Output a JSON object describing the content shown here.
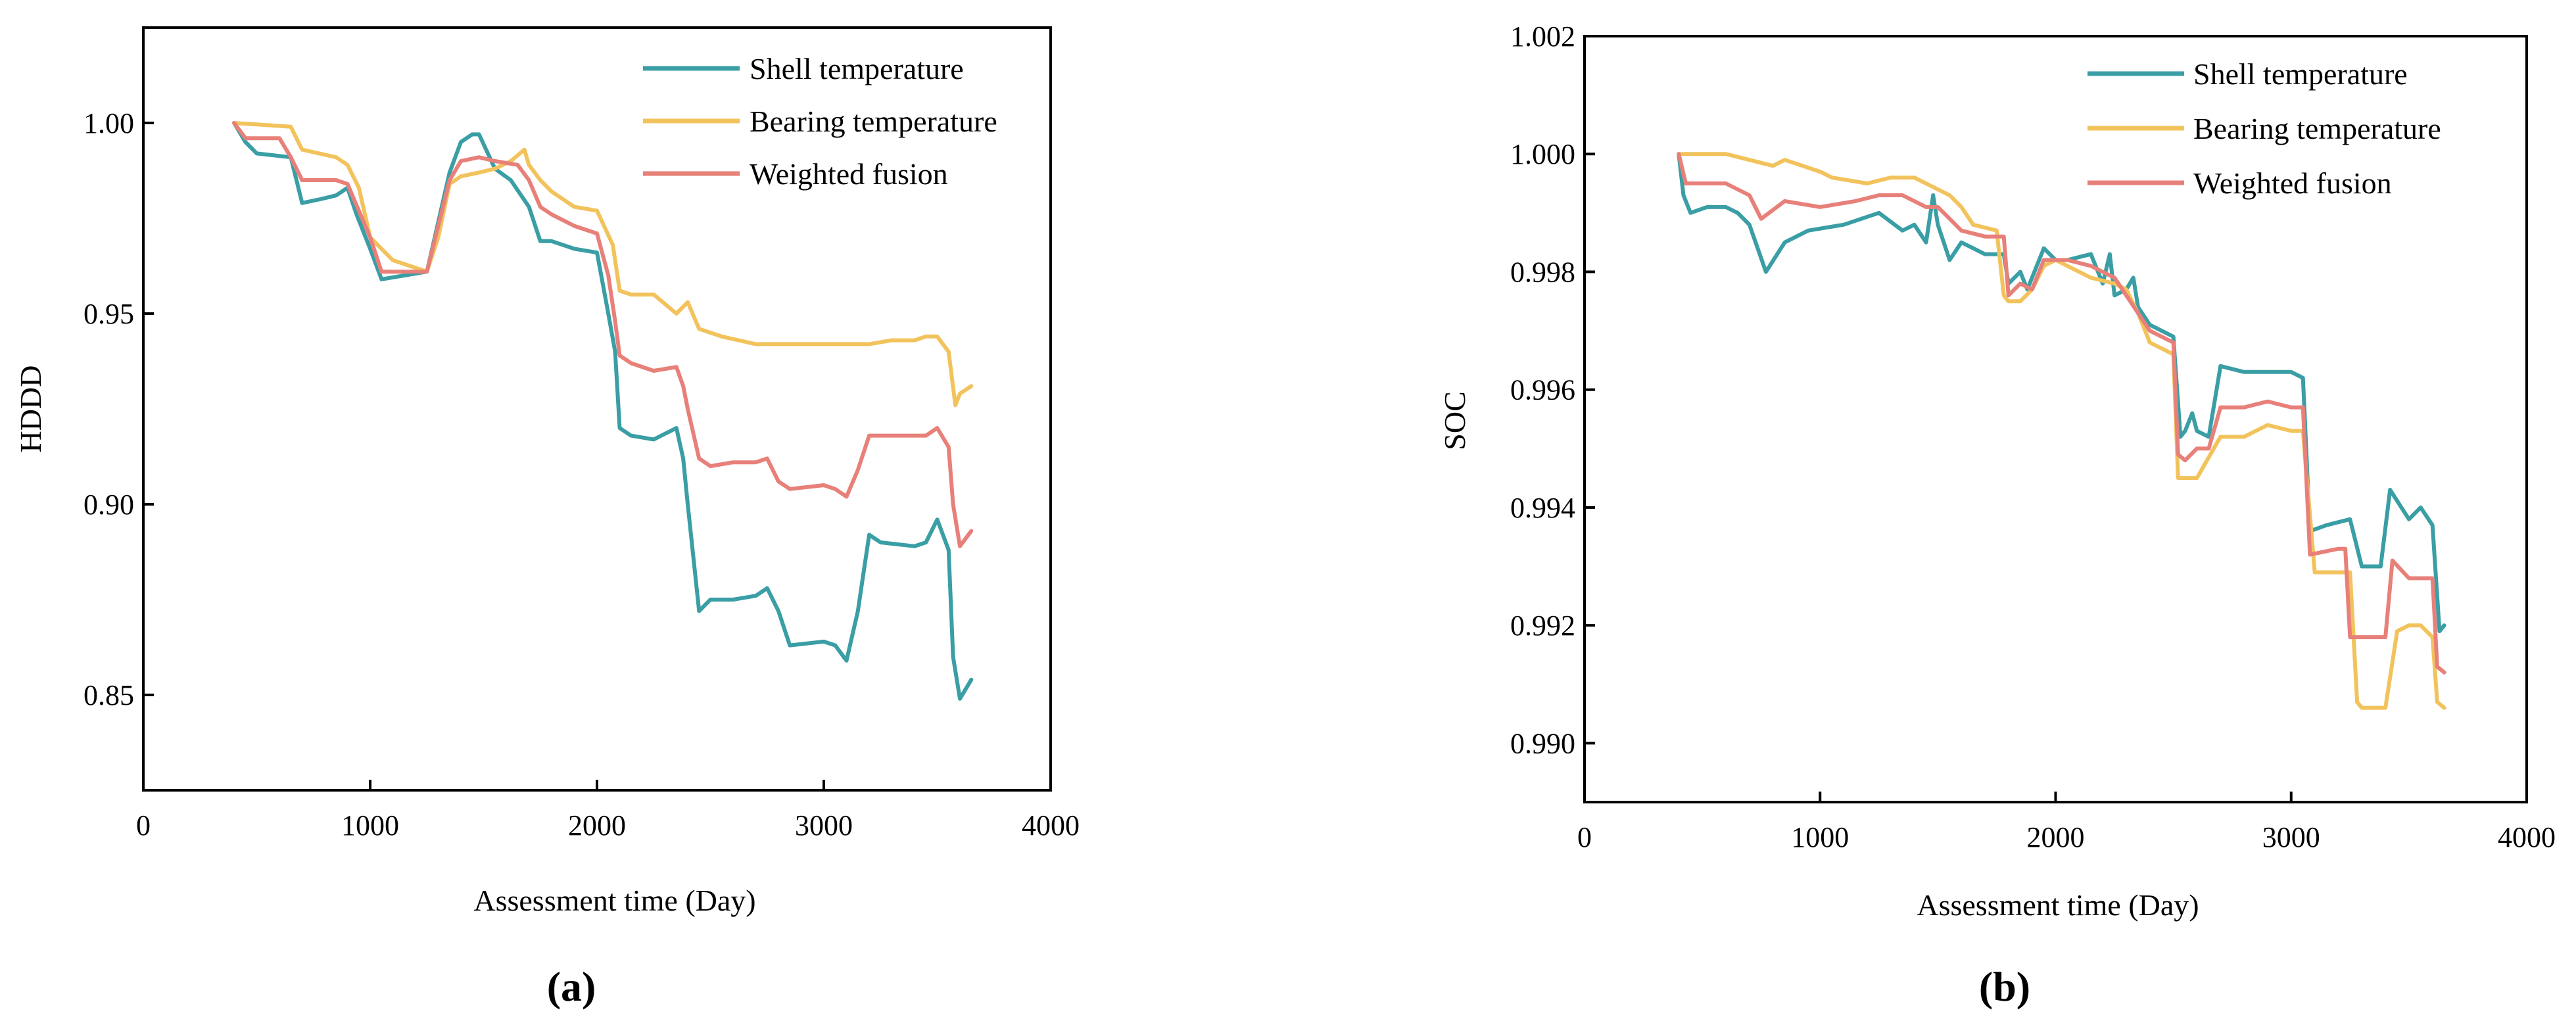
{
  "colors": {
    "shell": "#3a9ea5",
    "bearing": "#f2c35c",
    "weighted": "#e8807a",
    "axis": "#000000"
  },
  "legend": {
    "shell": "Shell temperature",
    "bearing": "Bearing temperature",
    "weighted": "Weighted fusion"
  },
  "panels": {
    "a": {
      "caption": "(a)"
    },
    "b": {
      "caption": "(b)"
    }
  },
  "chart_data": [
    {
      "id": "a",
      "type": "line",
      "title": "",
      "xlabel": "Assessment time (Day)",
      "ylabel": "HDDD",
      "xlim": [
        0,
        4000
      ],
      "ylim": [
        0.825,
        1.025
      ],
      "xticks": [
        0,
        1000,
        2000,
        3000,
        4000
      ],
      "xtick_labels": [
        "0",
        "1000",
        "2000",
        "3000",
        "4000"
      ],
      "yticks": [
        0.85,
        0.9,
        0.95,
        1.0
      ],
      "ytick_labels": [
        "0.85",
        "0.90",
        "0.95",
        "1.00"
      ],
      "grid": false,
      "legend_position": "top-right",
      "series": [
        {
          "key": "shell",
          "name": "Shell temperature",
          "x": [
            400,
            450,
            500,
            650,
            700,
            780,
            850,
            900,
            940,
            1000,
            1050,
            1150,
            1250,
            1350,
            1400,
            1450,
            1480,
            1550,
            1620,
            1700,
            1750,
            1800,
            1900,
            2000,
            2050,
            2080,
            2100,
            2150,
            2250,
            2350,
            2380,
            2400,
            2450,
            2500,
            2600,
            2700,
            2750,
            2800,
            2850,
            3000,
            3050,
            3100,
            3150,
            3200,
            3250,
            3400,
            3450,
            3500,
            3550,
            3570,
            3600,
            3650
          ],
          "y": [
            1.0,
            0.995,
            0.992,
            0.991,
            0.979,
            0.98,
            0.981,
            0.983,
            0.976,
            0.967,
            0.959,
            0.96,
            0.961,
            0.987,
            0.995,
            0.997,
            0.997,
            0.988,
            0.985,
            0.978,
            0.969,
            0.969,
            0.967,
            0.966,
            0.95,
            0.94,
            0.92,
            0.918,
            0.917,
            0.92,
            0.912,
            0.9,
            0.872,
            0.875,
            0.875,
            0.876,
            0.878,
            0.872,
            0.863,
            0.864,
            0.863,
            0.859,
            0.872,
            0.892,
            0.89,
            0.889,
            0.89,
            0.896,
            0.888,
            0.86,
            0.849,
            0.854
          ]
        },
        {
          "key": "bearing",
          "name": "Bearing temperature",
          "x": [
            400,
            650,
            700,
            850,
            900,
            950,
            1000,
            1100,
            1200,
            1250,
            1300,
            1350,
            1400,
            1480,
            1550,
            1620,
            1680,
            1700,
            1750,
            1800,
            1850,
            1900,
            2000,
            2070,
            2100,
            2150,
            2250,
            2350,
            2400,
            2450,
            2550,
            2700,
            2800,
            2900,
            3100,
            3200,
            3300,
            3400,
            3450,
            3500,
            3550,
            3580,
            3600,
            3650
          ],
          "y": [
            1.0,
            0.999,
            0.993,
            0.991,
            0.989,
            0.983,
            0.97,
            0.964,
            0.962,
            0.961,
            0.97,
            0.984,
            0.986,
            0.987,
            0.988,
            0.99,
            0.993,
            0.989,
            0.985,
            0.982,
            0.98,
            0.978,
            0.977,
            0.968,
            0.956,
            0.955,
            0.955,
            0.95,
            0.953,
            0.946,
            0.944,
            0.942,
            0.942,
            0.942,
            0.942,
            0.942,
            0.943,
            0.943,
            0.944,
            0.944,
            0.94,
            0.926,
            0.929,
            0.931
          ]
        },
        {
          "key": "weighted",
          "name": "Weighted fusion",
          "x": [
            400,
            450,
            600,
            650,
            700,
            850,
            900,
            1000,
            1050,
            1150,
            1250,
            1350,
            1400,
            1480,
            1550,
            1650,
            1700,
            1750,
            1800,
            1900,
            2000,
            2050,
            2080,
            2100,
            2150,
            2250,
            2350,
            2380,
            2400,
            2450,
            2500,
            2600,
            2700,
            2750,
            2800,
            2850,
            3000,
            3050,
            3100,
            3150,
            3200,
            3250,
            3450,
            3500,
            3550,
            3570,
            3600,
            3650
          ],
          "y": [
            1.0,
            0.996,
            0.996,
            0.991,
            0.985,
            0.985,
            0.984,
            0.97,
            0.961,
            0.961,
            0.961,
            0.985,
            0.99,
            0.991,
            0.99,
            0.989,
            0.985,
            0.978,
            0.976,
            0.973,
            0.971,
            0.96,
            0.948,
            0.939,
            0.937,
            0.935,
            0.936,
            0.931,
            0.925,
            0.912,
            0.91,
            0.911,
            0.911,
            0.912,
            0.906,
            0.904,
            0.905,
            0.904,
            0.902,
            0.909,
            0.918,
            0.918,
            0.918,
            0.92,
            0.915,
            0.9,
            0.889,
            0.893
          ]
        }
      ]
    },
    {
      "id": "b",
      "type": "line",
      "title": "",
      "xlabel": "Assessment time (Day)",
      "ylabel": "SOC",
      "xlim": [
        0,
        4000
      ],
      "ylim": [
        0.989,
        1.002
      ],
      "xticks": [
        0,
        1000,
        2000,
        3000,
        4000
      ],
      "xtick_labels": [
        "0",
        "1000",
        "2000",
        "3000",
        "4000"
      ],
      "yticks": [
        0.99,
        0.992,
        0.994,
        0.996,
        0.998,
        1.0,
        1.002
      ],
      "ytick_labels": [
        "0.990",
        "0.992",
        "0.994",
        "0.996",
        "0.998",
        "1.000",
        "1.002"
      ],
      "grid": false,
      "legend_position": "top-right",
      "series": [
        {
          "key": "shell",
          "name": "Shell temperature",
          "x": [
            400,
            420,
            450,
            520,
            600,
            650,
            700,
            770,
            850,
            950,
            1100,
            1250,
            1350,
            1400,
            1450,
            1480,
            1500,
            1550,
            1600,
            1650,
            1700,
            1780,
            1800,
            1850,
            1880,
            1950,
            2000,
            2050,
            2150,
            2200,
            2230,
            2250,
            2300,
            2330,
            2350,
            2400,
            2500,
            2530,
            2550,
            2580,
            2600,
            2650,
            2700,
            2800,
            2950,
            3000,
            3050,
            3080,
            3150,
            3250,
            3300,
            3380,
            3420,
            3500,
            3550,
            3600,
            3630,
            3650
          ],
          "y": [
            1.0,
            0.9993,
            0.999,
            0.9991,
            0.9991,
            0.999,
            0.9988,
            0.998,
            0.9985,
            0.9987,
            0.9988,
            0.999,
            0.9987,
            0.9988,
            0.9985,
            0.9993,
            0.9988,
            0.9982,
            0.9985,
            0.9984,
            0.9983,
            0.9983,
            0.9978,
            0.998,
            0.9977,
            0.9984,
            0.9982,
            0.9982,
            0.9983,
            0.9978,
            0.9983,
            0.9976,
            0.9977,
            0.9979,
            0.9974,
            0.9971,
            0.9969,
            0.9952,
            0.9953,
            0.9956,
            0.9953,
            0.9952,
            0.9964,
            0.9963,
            0.9963,
            0.9963,
            0.9962,
            0.9936,
            0.9937,
            0.9938,
            0.993,
            0.993,
            0.9943,
            0.9938,
            0.994,
            0.9937,
            0.9919,
            0.992
          ]
        },
        {
          "key": "bearing",
          "name": "Bearing temperature",
          "x": [
            400,
            600,
            700,
            800,
            850,
            1000,
            1050,
            1200,
            1300,
            1400,
            1500,
            1550,
            1600,
            1650,
            1750,
            1780,
            1800,
            1850,
            1900,
            1950,
            2000,
            2050,
            2150,
            2250,
            2300,
            2350,
            2400,
            2500,
            2520,
            2550,
            2600,
            2700,
            2800,
            2900,
            3000,
            3050,
            3100,
            3200,
            3250,
            3280,
            3300,
            3400,
            3450,
            3500,
            3550,
            3600,
            3620,
            3650
          ],
          "y": [
            1.0,
            1.0,
            0.9999,
            0.9998,
            0.9999,
            0.9997,
            0.9996,
            0.9995,
            0.9996,
            0.9996,
            0.9994,
            0.9993,
            0.9991,
            0.9988,
            0.9987,
            0.9976,
            0.9975,
            0.9975,
            0.9977,
            0.9981,
            0.9982,
            0.9981,
            0.9979,
            0.9978,
            0.9977,
            0.9973,
            0.9968,
            0.9966,
            0.9945,
            0.9945,
            0.9945,
            0.9952,
            0.9952,
            0.9954,
            0.9953,
            0.9953,
            0.9929,
            0.9929,
            0.9929,
            0.9907,
            0.9906,
            0.9906,
            0.9919,
            0.992,
            0.992,
            0.9918,
            0.9907,
            0.9906
          ]
        },
        {
          "key": "weighted",
          "name": "Weighted fusion",
          "x": [
            400,
            430,
            500,
            600,
            700,
            750,
            850,
            1000,
            1150,
            1250,
            1350,
            1450,
            1500,
            1550,
            1600,
            1700,
            1780,
            1800,
            1850,
            1900,
            1950,
            2050,
            2150,
            2250,
            2300,
            2350,
            2400,
            2500,
            2520,
            2550,
            2600,
            2650,
            2700,
            2800,
            2900,
            3000,
            3050,
            3080,
            3200,
            3230,
            3250,
            3300,
            3400,
            3430,
            3500,
            3550,
            3600,
            3620,
            3650
          ],
          "y": [
            1.0,
            0.9995,
            0.9995,
            0.9995,
            0.9993,
            0.9989,
            0.9992,
            0.9991,
            0.9992,
            0.9993,
            0.9993,
            0.9991,
            0.9991,
            0.9989,
            0.9987,
            0.9986,
            0.9986,
            0.9976,
            0.9978,
            0.9977,
            0.9982,
            0.9982,
            0.9981,
            0.9979,
            0.9976,
            0.9973,
            0.997,
            0.9968,
            0.9949,
            0.9948,
            0.995,
            0.995,
            0.9957,
            0.9957,
            0.9958,
            0.9957,
            0.9957,
            0.9932,
            0.9933,
            0.9933,
            0.9918,
            0.9918,
            0.9918,
            0.9931,
            0.9928,
            0.9928,
            0.9928,
            0.9913,
            0.9912
          ]
        }
      ]
    }
  ]
}
